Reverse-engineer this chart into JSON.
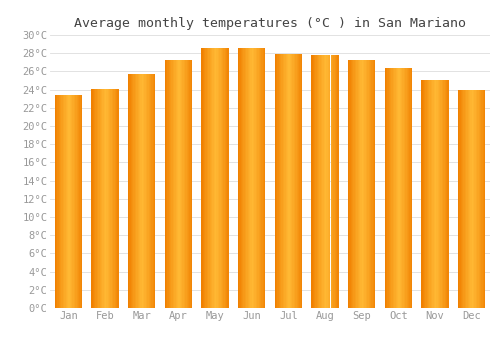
{
  "title": "Average monthly temperatures (°C ) in San Mariano",
  "months": [
    "Jan",
    "Feb",
    "Mar",
    "Apr",
    "May",
    "Jun",
    "Jul",
    "Aug",
    "Sep",
    "Oct",
    "Nov",
    "Dec"
  ],
  "values": [
    23.4,
    24.1,
    25.7,
    27.3,
    28.6,
    28.6,
    27.9,
    27.8,
    27.3,
    26.4,
    25.1,
    24.0
  ],
  "bar_color_center": "#FFB833",
  "bar_color_edge": "#F08000",
  "background_color": "#FFFFFF",
  "plot_bg_color": "#FFFFFF",
  "grid_color": "#DDDDDD",
  "tick_color": "#999999",
  "title_color": "#444444",
  "ylim": [
    0,
    30
  ],
  "ytick_step": 2,
  "title_fontsize": 9.5,
  "tick_fontsize": 7.5,
  "font_family": "monospace"
}
